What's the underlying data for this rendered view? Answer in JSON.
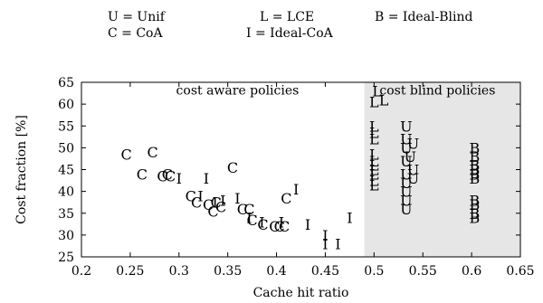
{
  "legend": [
    {
      "text": "U = Unif"
    },
    {
      "text": "L = LCE"
    },
    {
      "text": "B = Ideal-Blind"
    },
    {
      "text": "C = CoA"
    },
    {
      "text": "I = Ideal-CoA"
    }
  ],
  "chart_data": {
    "type": "scatter",
    "xlabel": "Cache hit ratio",
    "ylabel": "Cost fraction [%]",
    "xlim": [
      0.2,
      0.65
    ],
    "ylim": [
      25,
      65
    ],
    "xticks": [
      "0.2",
      "0.25",
      "0.3",
      "0.35",
      "0.4",
      "0.45",
      "0.5",
      "0.55",
      "0.6",
      "0.65"
    ],
    "yticks": [
      "25",
      "30",
      "35",
      "40",
      "45",
      "50",
      "55",
      "60",
      "65"
    ],
    "grid": false,
    "shaded_region": {
      "x_from": 0.49,
      "x_to": 0.65,
      "color": "#e6e6e6"
    },
    "annotations": [
      {
        "text": "cost aware policies",
        "x": 0.36,
        "y": 63
      },
      {
        "text": "cost blind policies",
        "x": 0.565,
        "y": 63
      }
    ],
    "series": [
      {
        "marker": "C",
        "points": [
          [
            0.246,
            48.5
          ],
          [
            0.262,
            44
          ],
          [
            0.273,
            49
          ],
          [
            0.283,
            43.5
          ],
          [
            0.288,
            44
          ],
          [
            0.291,
            43.5
          ],
          [
            0.312,
            39
          ],
          [
            0.318,
            37.5
          ],
          [
            0.33,
            37
          ],
          [
            0.335,
            35.5
          ],
          [
            0.338,
            37.5
          ],
          [
            0.343,
            36.5
          ],
          [
            0.355,
            45.5
          ],
          [
            0.365,
            36
          ],
          [
            0.372,
            36
          ],
          [
            0.375,
            33.5
          ],
          [
            0.386,
            32.5
          ],
          [
            0.398,
            32
          ],
          [
            0.403,
            32
          ],
          [
            0.408,
            32
          ],
          [
            0.41,
            38.5
          ]
        ]
      },
      {
        "marker": "I",
        "points": [
          [
            0.3,
            43
          ],
          [
            0.322,
            39
          ],
          [
            0.328,
            43
          ],
          [
            0.337,
            37.5
          ],
          [
            0.345,
            38
          ],
          [
            0.36,
            38.5
          ],
          [
            0.372,
            34
          ],
          [
            0.385,
            33
          ],
          [
            0.405,
            33
          ],
          [
            0.42,
            40.5
          ],
          [
            0.432,
            32.5
          ],
          [
            0.45,
            30
          ],
          [
            0.45,
            28
          ],
          [
            0.463,
            28
          ],
          [
            0.475,
            34
          ]
        ]
      },
      {
        "marker": "L",
        "points": [
          [
            0.5,
            41.5
          ],
          [
            0.5,
            42.5
          ],
          [
            0.5,
            44
          ],
          [
            0.5,
            45
          ],
          [
            0.5,
            46
          ],
          [
            0.5,
            47
          ],
          [
            0.5,
            48.5
          ],
          [
            0.5,
            52
          ],
          [
            0.5,
            53.5
          ],
          [
            0.5,
            55
          ],
          [
            0.5,
            60.5
          ],
          [
            0.503,
            63
          ],
          [
            0.51,
            61
          ]
        ]
      },
      {
        "marker": "U",
        "points": [
          [
            0.533,
            55
          ],
          [
            0.533,
            52
          ],
          [
            0.533,
            50
          ],
          [
            0.533,
            47
          ],
          [
            0.533,
            44
          ],
          [
            0.533,
            42
          ],
          [
            0.533,
            40
          ],
          [
            0.533,
            38
          ],
          [
            0.533,
            36
          ],
          [
            0.537,
            48
          ],
          [
            0.54,
            51
          ],
          [
            0.54,
            45
          ],
          [
            0.54,
            43
          ]
        ]
      },
      {
        "marker": "B",
        "points": [
          [
            0.603,
            50
          ],
          [
            0.603,
            48
          ],
          [
            0.603,
            46
          ],
          [
            0.603,
            45
          ],
          [
            0.603,
            44
          ],
          [
            0.603,
            43
          ],
          [
            0.603,
            38
          ],
          [
            0.603,
            37
          ],
          [
            0.603,
            35
          ],
          [
            0.603,
            34
          ]
        ]
      }
    ]
  }
}
